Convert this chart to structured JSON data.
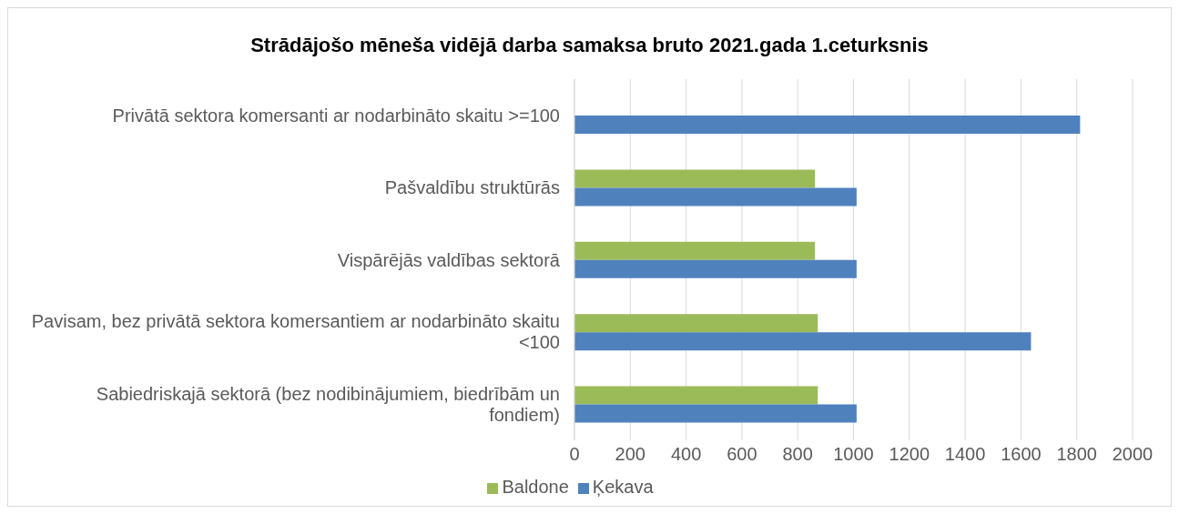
{
  "chart_data": {
    "type": "bar",
    "orientation": "horizontal",
    "title": "Strādājošo mēneša vidējā darba samaksa bruto  2021.gada 1.ceturksnis",
    "categories": [
      "Privātā sektora komersanti ar nodarbināto skaitu >=100",
      "Pašvaldību struktūrās",
      "Vispārējās valdības sektorā",
      "Pavisam, bez privātā sektora komersantiem ar nodarbināto skaitu <100",
      "Sabiedriskajā sektorā (bez nodibinājumiem, biedrībām un fondiem)"
    ],
    "series": [
      {
        "name": "Baldone",
        "color": "#9bbb59",
        "values": [
          null,
          862,
          862,
          872,
          872
        ]
      },
      {
        "name": "Ķekava",
        "color": "#4f81bd",
        "values": [
          1812,
          1011,
          1011,
          1636,
          1011
        ]
      }
    ],
    "xlim": [
      0,
      2000
    ],
    "xticks": [
      0,
      200,
      400,
      600,
      800,
      1000,
      1200,
      1400,
      1600,
      1800,
      2000
    ],
    "grid": "x",
    "legend": "bottom"
  }
}
